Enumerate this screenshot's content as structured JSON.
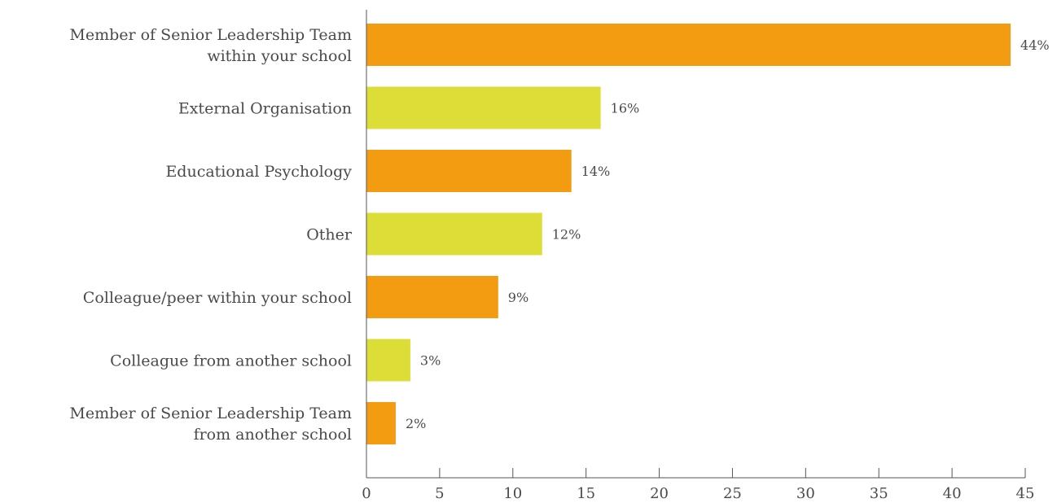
{
  "chart_data": {
    "type": "bar",
    "orientation": "horizontal",
    "categories": [
      [
        "Member of Senior Leadership Team",
        "within your school"
      ],
      [
        "External Organisation"
      ],
      [
        "Educational Psychology"
      ],
      [
        "Other"
      ],
      [
        "Colleague/peer within your school"
      ],
      [
        "Colleague from another school"
      ],
      [
        "Member of Senior Leadership Team",
        "from another school"
      ]
    ],
    "values": [
      44,
      16,
      14,
      12,
      9,
      3,
      2
    ],
    "value_labels": [
      "44%",
      "16%",
      "14%",
      "12%",
      "9%",
      "3%",
      "2%"
    ],
    "bar_colors": [
      "#F39C12",
      "#DDDD38",
      "#F39C12",
      "#DDDD38",
      "#F39C12",
      "#DDDD38",
      "#F39C12"
    ],
    "xlim": [
      0,
      45
    ],
    "xticks": [
      0,
      5,
      10,
      15,
      20,
      25,
      30,
      35,
      40,
      45
    ],
    "grid": false,
    "legend": "none",
    "title": "",
    "xlabel": "",
    "ylabel": ""
  }
}
